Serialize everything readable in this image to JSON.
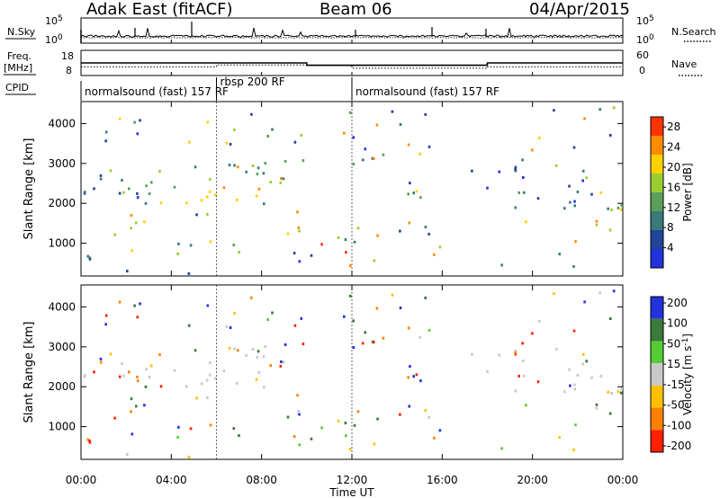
{
  "header": {
    "station": "Adak East (fitACF)",
    "beam": "Beam 06",
    "date": "04/Apr/2015"
  },
  "chart_data": [
    {
      "type": "line",
      "panel": "nsky-nsearch",
      "left_label": "N.Sky",
      "right_label": "N.Search",
      "left_ticks": [
        "10^5",
        "10^0"
      ],
      "right_ticks": [
        "10^5",
        "10^0"
      ],
      "series": [
        {
          "name": "N.Sky"
        },
        {
          "name": "N.Search"
        }
      ]
    },
    {
      "type": "line",
      "panel": "freq-nave",
      "left_label": "Freq.",
      "left_unit": "[MHz]",
      "right_label": "Nave",
      "left_ticks": [
        18,
        8
      ],
      "right_ticks": [
        60,
        0
      ],
      "freq_x_hours": [
        0,
        6,
        6,
        10,
        10,
        18,
        18,
        24
      ],
      "freq_y_mhz": [
        13.0,
        13.0,
        13.0,
        13.0,
        11.8,
        11.8,
        13.0,
        13.0
      ],
      "nave_x_hours": [
        0,
        6,
        6,
        10,
        10,
        12,
        12,
        18,
        18,
        24
      ],
      "nave_y": [
        18,
        18,
        24,
        24,
        22,
        22,
        14,
        14,
        18,
        18
      ],
      "series": [
        {
          "name": "Freq."
        },
        {
          "name": "Nave"
        }
      ]
    },
    {
      "type": "table",
      "panel": "cpid",
      "label": "CPID",
      "segments": [
        {
          "label": "normalsound (fast) 157 RF",
          "start_h": 0,
          "end_h": 6
        },
        {
          "label": "rbsp 200 RF",
          "start_h": 6,
          "end_h": 12
        },
        {
          "label": "normalsound (fast) 157 RF",
          "start_h": 12,
          "end_h": 24
        }
      ]
    },
    {
      "type": "heatmap",
      "panel": "power",
      "ylabel": "Slant Range [km]",
      "yticks": [
        1000,
        2000,
        3000,
        4000
      ],
      "ylim": [
        180,
        4550
      ],
      "colorbar_label": "Power [dB]",
      "colorbar_ticks": [
        4,
        8,
        12,
        16,
        20,
        24,
        28
      ],
      "colorbar_range": [
        0,
        30
      ],
      "colors": [
        "#2233dd",
        "#22449a",
        "#3a7a7a",
        "#5aa05a",
        "#9acd32",
        "#ffd000",
        "#ff8c00",
        "#ff3300"
      ],
      "grid": false
    },
    {
      "type": "heatmap",
      "panel": "velocity",
      "ylabel": "Slant Range [km]",
      "yticks": [
        1000,
        2000,
        3000,
        4000
      ],
      "ylim": [
        180,
        4550
      ],
      "colorbar_label": "Velocity [m s^-1]",
      "colorbar_ticks": [
        200,
        100,
        50,
        15,
        -15,
        -50,
        -100,
        -200
      ],
      "colors": [
        "#2233dd",
        "#3a7a3a",
        "#55cc33",
        "#c8c8c8",
        "#ffc000",
        "#ff8000",
        "#ff2000"
      ],
      "grid": false,
      "xlabel": "Time UT",
      "xticks": [
        "00:00",
        "04:00",
        "08:00",
        "12:00",
        "16:00",
        "20:00",
        "00:00"
      ],
      "xlim_hours": [
        0,
        24
      ]
    }
  ]
}
